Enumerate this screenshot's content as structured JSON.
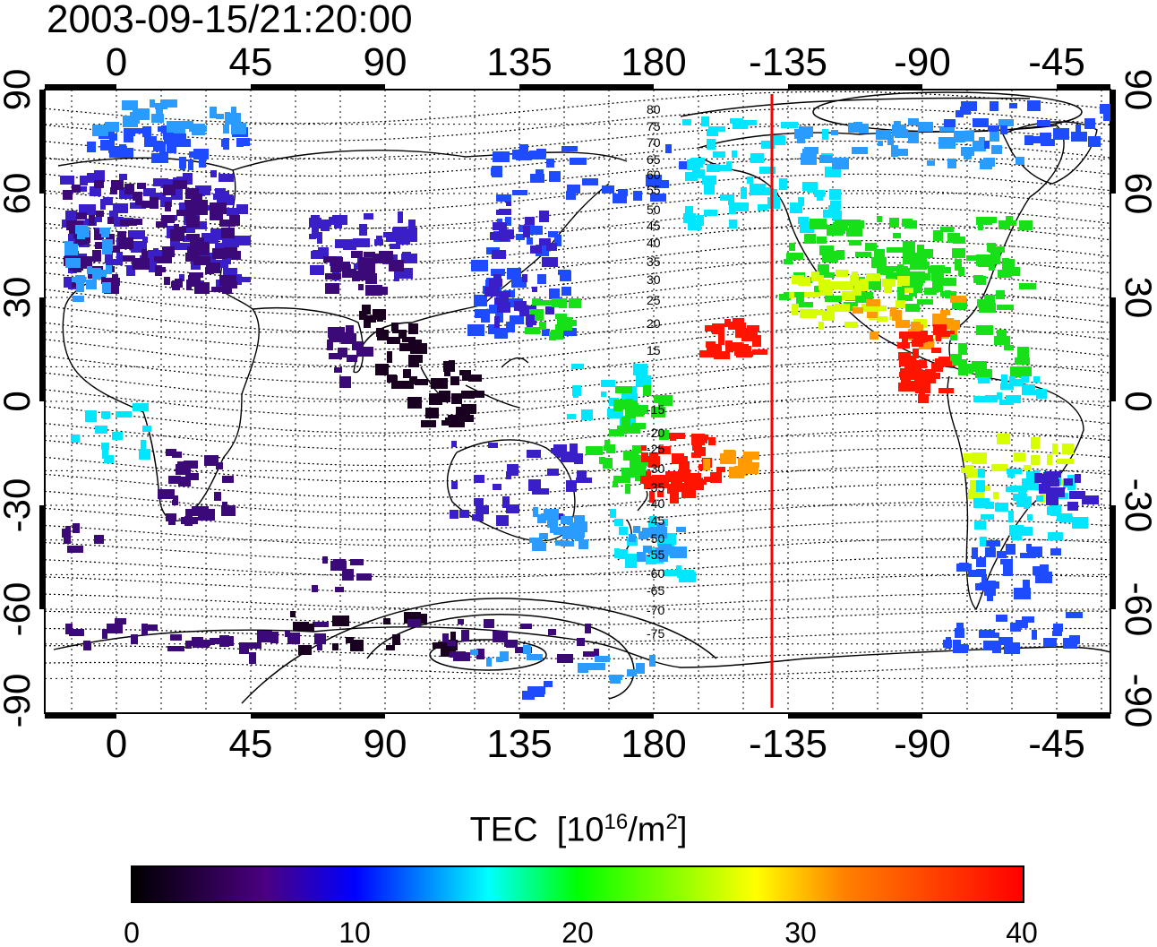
{
  "timestamp": "2003-09-15/21:20:00",
  "map": {
    "lon_ticks": [
      "0",
      "45",
      "90",
      "135",
      "180",
      "-135",
      "-90",
      "-45"
    ],
    "lat_ticks": [
      "90",
      "60",
      "30",
      "0",
      "-30",
      "-60",
      "-90"
    ],
    "contour_labels": [
      "80",
      "75",
      "70",
      "65",
      "60",
      "55",
      "50",
      "45",
      "40",
      "35",
      "30",
      "25",
      "20",
      "15",
      "-15",
      "-20",
      "-25",
      "-30",
      "-35",
      "-40",
      "-45",
      "-50",
      "-55",
      "-60",
      "-65",
      "-70",
      "-75"
    ],
    "terminator_color": "#ff0000"
  },
  "colorbar": {
    "title": "TEC",
    "unit_open": "[10",
    "unit_exp": "16",
    "unit_mid": "/m",
    "unit_exp2": "2",
    "unit_close": "]",
    "ticks": [
      "0",
      "10",
      "20",
      "30",
      "40"
    ],
    "range": [
      0,
      40
    ],
    "colors": [
      "#000000",
      "#4b0082",
      "#0000ff",
      "#00ffff",
      "#00ff00",
      "#ffff00",
      "#ff8000",
      "#ff0000"
    ]
  }
}
